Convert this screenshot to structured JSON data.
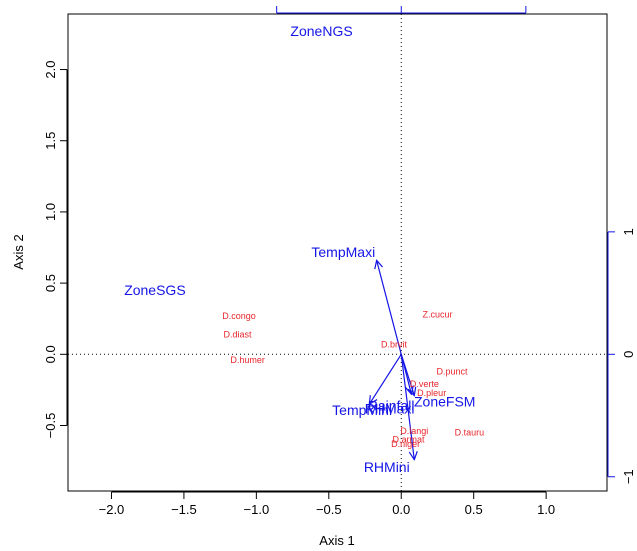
{
  "chart_data": {
    "type": "scatter",
    "title": "",
    "xlabel": "Axis 1",
    "ylabel": "Axis 2",
    "xlim": [
      -2.3,
      1.42
    ],
    "ylim": [
      -0.96,
      2.39
    ],
    "x_ticks": [
      -2.0,
      -1.5,
      -1.0,
      -0.5,
      0.0,
      0.5,
      1.0
    ],
    "x_tick_labels": [
      "−2.0",
      "−1.5",
      "−1.0",
      "−0.5",
      "0.0",
      "0.5",
      "1.0"
    ],
    "y_ticks": [
      -0.5,
      0.0,
      0.5,
      1.0,
      1.5,
      2.0
    ],
    "y_tick_labels": [
      "−0.5",
      "0.0",
      "0.5",
      "1.0",
      "1.5",
      "2.0"
    ],
    "right_axis": {
      "ticks": [
        -1,
        0,
        1
      ],
      "tick_labels": [
        "−1",
        "0",
        "1"
      ],
      "data_per_unit": 0.86
    },
    "top_axis": {
      "ticks": [
        -1,
        0,
        1
      ],
      "data_per_unit": 0.86
    },
    "reference_lines": {
      "x": 0,
      "y": 0,
      "style": "dotted"
    },
    "colors": {
      "species": "#e8252b",
      "variables": "#1515e6",
      "axes": "#000000"
    },
    "species": [
      {
        "label": "D.congo",
        "x": -1.12,
        "y": 0.27
      },
      {
        "label": "D.diast",
        "x": -1.13,
        "y": 0.14
      },
      {
        "label": "D.humer",
        "x": -1.06,
        "y": -0.04
      },
      {
        "label": "Z.cucur",
        "x": 0.25,
        "y": 0.28
      },
      {
        "label": "D.brvit",
        "x": -0.05,
        "y": 0.07
      },
      {
        "label": "D.punct",
        "x": 0.35,
        "y": -0.12
      },
      {
        "label": "D.verte",
        "x": 0.16,
        "y": -0.21
      },
      {
        "label": "D.pleur",
        "x": 0.21,
        "y": -0.27
      },
      {
        "label": "D.langi",
        "x": 0.09,
        "y": -0.54
      },
      {
        "label": "D.armat",
        "x": 0.05,
        "y": -0.6
      },
      {
        "label": "D.niger",
        "x": 0.03,
        "y": -0.63
      },
      {
        "label": "D.tauru",
        "x": 0.47,
        "y": -0.55
      }
    ],
    "vectors": [
      {
        "label": "TempMaxi",
        "x": -0.17,
        "y": 0.66,
        "label_x": -0.4,
        "label_y": 0.72
      },
      {
        "label": "TempMini",
        "x": -0.22,
        "y": -0.35,
        "label_x": -0.27,
        "label_y": -0.39
      },
      {
        "label": "RHMaxi",
        "x": 0.07,
        "y": -0.28,
        "label_x": -0.08,
        "label_y": -0.38
      },
      {
        "label": "Rainfall",
        "x": 0.09,
        "y": -0.29,
        "label_x": -0.07,
        "label_y": -0.36
      },
      {
        "label": "RHMini",
        "x": 0.09,
        "y": -0.74,
        "label_x": -0.1,
        "label_y": -0.79
      }
    ],
    "factor_labels": [
      {
        "label": "ZoneNGS",
        "x": -0.55,
        "y": 2.27
      },
      {
        "label": "ZoneSGS",
        "x": -1.7,
        "y": 0.45
      },
      {
        "label": "ZoneFSM",
        "x": 0.3,
        "y": -0.33
      }
    ]
  }
}
